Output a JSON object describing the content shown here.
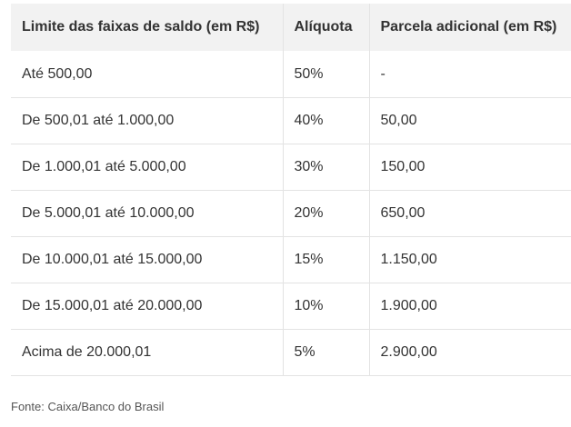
{
  "table": {
    "headers": [
      "Limite das faixas de saldo (em R$)",
      "Alíquota",
      "Parcela adicional (em R$)"
    ],
    "rows": [
      [
        "Até 500,00",
        "50%",
        "-"
      ],
      [
        "De 500,01 até 1.000,00",
        "40%",
        "50,00"
      ],
      [
        "De 1.000,01 até 5.000,00",
        "30%",
        "150,00"
      ],
      [
        "De 5.000,01 até 10.000,00",
        "20%",
        "650,00"
      ],
      [
        "De 10.000,01 até 15.000,00",
        "15%",
        "1.150,00"
      ],
      [
        "De 15.000,01 até 20.000,00",
        "10%",
        "1.900,00"
      ],
      [
        "Acima de 20.000,01",
        "5%",
        "2.900,00"
      ]
    ]
  },
  "source": "Fonte: Caixa/Banco do Brasil"
}
